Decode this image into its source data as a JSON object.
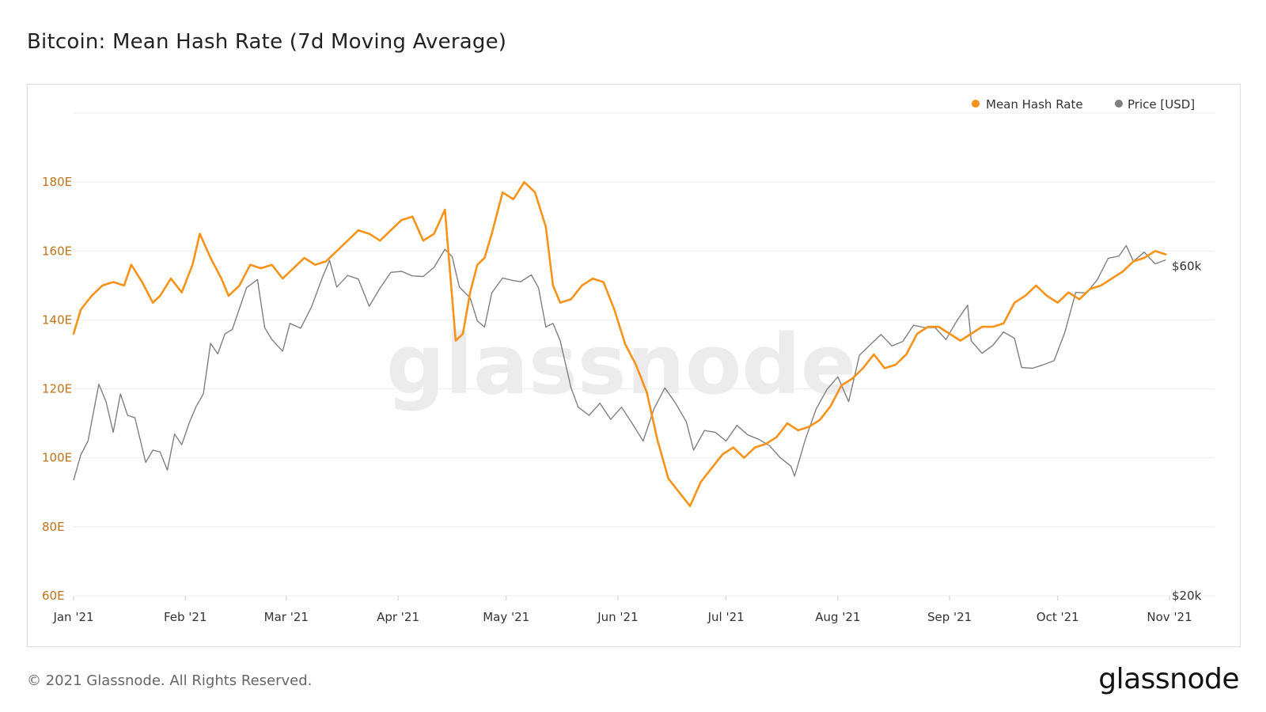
{
  "title": "Bitcoin: Mean Hash Rate (7d Moving Average)",
  "footer": "© 2021 Glassnode. All Rights Reserved.",
  "brand": "glassnode",
  "watermark": "glassnode",
  "colors": {
    "hash": "#f7931a",
    "price": "#808080",
    "grid": "#ececec",
    "axisText": "#333333",
    "leftAxisText": "#c0731b"
  },
  "chart_data": {
    "type": "line",
    "title": "Bitcoin: Mean Hash Rate (7d Moving Average)",
    "legend_position": "top-right",
    "grid": true,
    "x_ticks": [
      "Jan '21",
      "Feb '21",
      "Mar '21",
      "Apr '21",
      "May '21",
      "Jun '21",
      "Jul '21",
      "Aug '21",
      "Sep '21",
      "Oct '21",
      "Nov '21"
    ],
    "x_range": [
      "2021-01-01",
      "2021-11-01"
    ],
    "left_axis": {
      "ticks": [
        "60E",
        "80E",
        "100E",
        "120E",
        "140E",
        "160E",
        "180E"
      ],
      "range": [
        60,
        200
      ],
      "unit": "E"
    },
    "right_axis": {
      "ticks": [
        "$20k",
        "$60k"
      ],
      "scale": "log",
      "range": [
        20000,
        100000
      ]
    },
    "series": [
      {
        "name": "Mean Hash Rate",
        "axis": "left",
        "x": [
          "2021-01-01",
          "2021-01-03",
          "2021-01-06",
          "2021-01-09",
          "2021-01-12",
          "2021-01-15",
          "2021-01-17",
          "2021-01-20",
          "2021-01-23",
          "2021-01-25",
          "2021-01-28",
          "2021-01-31",
          "2021-02-03",
          "2021-02-05",
          "2021-02-08",
          "2021-02-11",
          "2021-02-13",
          "2021-02-16",
          "2021-02-19",
          "2021-02-22",
          "2021-02-25",
          "2021-02-28",
          "2021-03-03",
          "2021-03-06",
          "2021-03-09",
          "2021-03-12",
          "2021-03-15",
          "2021-03-18",
          "2021-03-21",
          "2021-03-24",
          "2021-03-27",
          "2021-03-30",
          "2021-04-02",
          "2021-04-05",
          "2021-04-08",
          "2021-04-11",
          "2021-04-14",
          "2021-04-17",
          "2021-04-19",
          "2021-04-21",
          "2021-04-23",
          "2021-04-25",
          "2021-04-27",
          "2021-04-30",
          "2021-05-03",
          "2021-05-06",
          "2021-05-09",
          "2021-05-12",
          "2021-05-14",
          "2021-05-16",
          "2021-05-19",
          "2021-05-22",
          "2021-05-25",
          "2021-05-28",
          "2021-05-31",
          "2021-06-03",
          "2021-06-06",
          "2021-06-09",
          "2021-06-12",
          "2021-06-15",
          "2021-06-18",
          "2021-06-21",
          "2021-06-24",
          "2021-06-27",
          "2021-06-30",
          "2021-07-03",
          "2021-07-06",
          "2021-07-09",
          "2021-07-12",
          "2021-07-15",
          "2021-07-18",
          "2021-07-21",
          "2021-07-24",
          "2021-07-27",
          "2021-07-30",
          "2021-08-02",
          "2021-08-05",
          "2021-08-08",
          "2021-08-11",
          "2021-08-14",
          "2021-08-17",
          "2021-08-20",
          "2021-08-23",
          "2021-08-26",
          "2021-08-29",
          "2021-09-01",
          "2021-09-04",
          "2021-09-07",
          "2021-09-10",
          "2021-09-13",
          "2021-09-16",
          "2021-09-19",
          "2021-09-22",
          "2021-09-25",
          "2021-09-28",
          "2021-10-01",
          "2021-10-04",
          "2021-10-07",
          "2021-10-10",
          "2021-10-13",
          "2021-10-16",
          "2021-10-19",
          "2021-10-22",
          "2021-10-25",
          "2021-10-28",
          "2021-10-31"
        ],
        "values": [
          136,
          143,
          147,
          150,
          151,
          150,
          156,
          151,
          145,
          147,
          152,
          148,
          156,
          165,
          158,
          152,
          147,
          150,
          156,
          155,
          156,
          152,
          155,
          158,
          156,
          157,
          160,
          163,
          166,
          165,
          163,
          166,
          169,
          170,
          163,
          165,
          172,
          134,
          136,
          148,
          156,
          158,
          165,
          177,
          175,
          180,
          177,
          167,
          150,
          145,
          146,
          150,
          152,
          151,
          143,
          133,
          127,
          119,
          105,
          94,
          90,
          86,
          93,
          97,
          101,
          103,
          100,
          103,
          104,
          106,
          110,
          108,
          109,
          111,
          115,
          121,
          123,
          126,
          130,
          126,
          127,
          130,
          136,
          138,
          138,
          136,
          134,
          136,
          138,
          138,
          139,
          145,
          147,
          150,
          147,
          145,
          148,
          146,
          149,
          150,
          152,
          154,
          157,
          158,
          160,
          159
        ]
      },
      {
        "name": "Price [USD]",
        "axis": "right",
        "x": [
          "2021-01-01",
          "2021-01-03",
          "2021-01-05",
          "2021-01-08",
          "2021-01-10",
          "2021-01-12",
          "2021-01-14",
          "2021-01-16",
          "2021-01-18",
          "2021-01-21",
          "2021-01-23",
          "2021-01-25",
          "2021-01-27",
          "2021-01-29",
          "2021-01-31",
          "2021-02-02",
          "2021-02-04",
          "2021-02-06",
          "2021-02-08",
          "2021-02-10",
          "2021-02-12",
          "2021-02-14",
          "2021-02-16",
          "2021-02-18",
          "2021-02-21",
          "2021-02-23",
          "2021-02-25",
          "2021-02-28",
          "2021-03-02",
          "2021-03-05",
          "2021-03-08",
          "2021-03-11",
          "2021-03-13",
          "2021-03-15",
          "2021-03-18",
          "2021-03-21",
          "2021-03-24",
          "2021-03-27",
          "2021-03-30",
          "2021-04-02",
          "2021-04-05",
          "2021-04-08",
          "2021-04-11",
          "2021-04-14",
          "2021-04-16",
          "2021-04-18",
          "2021-04-21",
          "2021-04-23",
          "2021-04-25",
          "2021-04-27",
          "2021-04-30",
          "2021-05-03",
          "2021-05-05",
          "2021-05-08",
          "2021-05-10",
          "2021-05-12",
          "2021-05-14",
          "2021-05-16",
          "2021-05-19",
          "2021-05-21",
          "2021-05-24",
          "2021-05-27",
          "2021-05-30",
          "2021-06-02",
          "2021-06-05",
          "2021-06-08",
          "2021-06-11",
          "2021-06-14",
          "2021-06-17",
          "2021-06-20",
          "2021-06-22",
          "2021-06-25",
          "2021-06-28",
          "2021-07-01",
          "2021-07-04",
          "2021-07-07",
          "2021-07-10",
          "2021-07-13",
          "2021-07-16",
          "2021-07-19",
          "2021-07-20",
          "2021-07-23",
          "2021-07-26",
          "2021-07-29",
          "2021-08-01",
          "2021-08-04",
          "2021-08-07",
          "2021-08-10",
          "2021-08-13",
          "2021-08-16",
          "2021-08-19",
          "2021-08-22",
          "2021-08-25",
          "2021-08-28",
          "2021-08-31",
          "2021-09-03",
          "2021-09-06",
          "2021-09-07",
          "2021-09-10",
          "2021-09-13",
          "2021-09-16",
          "2021-09-19",
          "2021-09-21",
          "2021-09-24",
          "2021-09-27",
          "2021-09-30",
          "2021-10-03",
          "2021-10-06",
          "2021-10-09",
          "2021-10-12",
          "2021-10-15",
          "2021-10-18",
          "2021-10-20",
          "2021-10-22",
          "2021-10-25",
          "2021-10-28",
          "2021-10-31"
        ],
        "values": [
          29400,
          32000,
          33500,
          40500,
          38200,
          34500,
          39200,
          36500,
          36200,
          31200,
          32500,
          32300,
          30400,
          34300,
          33100,
          35500,
          37600,
          39200,
          46400,
          44800,
          47900,
          48600,
          52100,
          55900,
          57400,
          48900,
          47000,
          45200,
          49600,
          48800,
          52400,
          57800,
          61200,
          56000,
          58200,
          57500,
          52500,
          55800,
          58800,
          59000,
          58100,
          58000,
          59800,
          63500,
          62000,
          56000,
          54000,
          50000,
          49000,
          54900,
          57700,
          57200,
          57000,
          58300,
          55800,
          49000,
          49600,
          46800,
          40000,
          37500,
          36500,
          38000,
          36000,
          37500,
          35500,
          33500,
          37300,
          40000,
          38000,
          35700,
          32500,
          34700,
          34500,
          33500,
          35300,
          34200,
          33700,
          33000,
          31700,
          30800,
          29800,
          33700,
          37300,
          39800,
          41500,
          38200,
          44600,
          46200,
          47800,
          46000,
          46700,
          49300,
          48900,
          48900,
          47000,
          50000,
          52700,
          46800,
          44900,
          46100,
          48200,
          47200,
          42800,
          42700,
          43200,
          43800,
          48200,
          55000,
          54900,
          57400,
          61600,
          62100,
          64300,
          61000,
          62900,
          60500,
          61300
        ]
      }
    ]
  },
  "axis_labels": {
    "x": [
      "Jan '21",
      "Feb '21",
      "Mar '21",
      "Apr '21",
      "May '21",
      "Jun '21",
      "Jul '21",
      "Aug '21",
      "Sep '21",
      "Oct '21",
      "Nov '21"
    ],
    "left": [
      "60E",
      "80E",
      "100E",
      "120E",
      "140E",
      "160E",
      "180E"
    ],
    "right": [
      "$20k",
      "$60k"
    ]
  }
}
